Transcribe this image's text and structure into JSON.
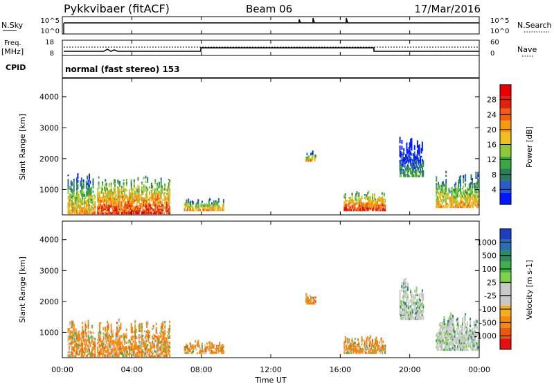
{
  "header": {
    "station": "Pykkvibaer (fitACF)",
    "beam": "Beam 06",
    "date": "17/Mar/2016"
  },
  "top_panels": {
    "nsky_label": "N.Sky",
    "nsky_ticks": [
      "10^5",
      "10^0"
    ],
    "nsearch_label": "N.Search",
    "freq_label_1": "Freq.",
    "freq_label_2": "[MHz]",
    "freq_ticks": [
      "18",
      "8"
    ],
    "nave_label": "Nave",
    "nave_ticks": [
      "60",
      "0"
    ],
    "cpid_label": "CPID",
    "cpid_value": "normal (fast stereo) 153"
  },
  "colorbars": {
    "power": {
      "label": "Power [dB]",
      "ticks": [
        "28",
        "24",
        "20",
        "16",
        "12",
        "8",
        "4"
      ],
      "colors": [
        "#0018ff",
        "#2a5cc8",
        "#2b7d5a",
        "#3aa840",
        "#8ec83a",
        "#f0c020",
        "#f59a10",
        "#f06010",
        "#e02010",
        "#e60000"
      ]
    },
    "velocity": {
      "label": "Velocity [m s-1]",
      "ticks": [
        "1000",
        "500",
        "100",
        "25",
        "-25",
        "-100",
        "-500",
        "-1000"
      ],
      "colors": [
        "#1b3fbf",
        "#2c6fb0",
        "#2f8a5e",
        "#40b04a",
        "#7fd04a",
        "#c8c8c8",
        "#c8c8c8",
        "#f0b020",
        "#f08a10",
        "#e85a10",
        "#e41010"
      ]
    }
  },
  "chart_data": [
    {
      "type": "heatmap",
      "title": "",
      "xlabel": "",
      "ylabel": "Slant Range [km]",
      "xlim": [
        "00:00",
        "24:00"
      ],
      "ylim": [
        180,
        4600
      ],
      "colorbar": "Power [dB]",
      "echo_regions": [
        {
          "t": [
            0.3,
            1.9
          ],
          "r": [
            200,
            1500
          ],
          "level": "16-24 dB"
        },
        {
          "t": [
            2.0,
            6.2
          ],
          "r": [
            200,
            1400
          ],
          "level": "20-28 dB"
        },
        {
          "t": [
            7.0,
            9.3
          ],
          "r": [
            300,
            700
          ],
          "level": "8-16 dB"
        },
        {
          "t": [
            14.0,
            14.6
          ],
          "r": [
            1900,
            2200
          ],
          "level": "16-24 dB"
        },
        {
          "t": [
            16.2,
            18.6
          ],
          "r": [
            300,
            900
          ],
          "level": "20-28 dB"
        },
        {
          "t": [
            19.4,
            20.8
          ],
          "r": [
            1400,
            2700
          ],
          "level": "4-12 dB"
        },
        {
          "t": [
            21.5,
            24.0
          ],
          "r": [
            400,
            1600
          ],
          "level": "8-24 dB"
        }
      ]
    },
    {
      "type": "heatmap",
      "title": "",
      "xlabel": "Time UT",
      "ylabel": "Slant Range [km]",
      "x_ticks": [
        "00:00",
        "04:00",
        "08:00",
        "12:00",
        "16:00",
        "20:00",
        "00:00"
      ],
      "y_ticks": [
        "1000",
        "2000",
        "3000",
        "4000"
      ],
      "ylim": [
        180,
        4600
      ],
      "colorbar": "Velocity [m s-1]",
      "echo_regions": [
        {
          "t": [
            0.3,
            1.9
          ],
          "r": [
            300,
            1400
          ],
          "level": "-100 to -500 m/s"
        },
        {
          "t": [
            2.0,
            6.2
          ],
          "r": [
            300,
            1400
          ],
          "level": "-100 to -500 m/s"
        },
        {
          "t": [
            16.2,
            18.6
          ],
          "r": [
            300,
            900
          ],
          "level": "-100 to -500 m/s"
        },
        {
          "t": [
            19.4,
            20.8
          ],
          "r": [
            1400,
            2700
          ],
          "level": "-25 to 25 m/s"
        },
        {
          "t": [
            21.5,
            24.0
          ],
          "r": [
            400,
            1400
          ],
          "level": "-25 to 100 m/s"
        }
      ]
    }
  ]
}
